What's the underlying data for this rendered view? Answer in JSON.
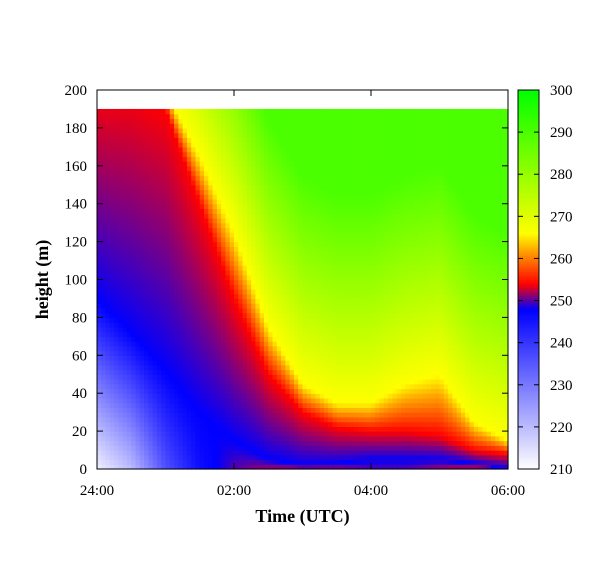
{
  "chart_data": {
    "type": "heatmap",
    "title": "",
    "xlabel": "Time (UTC)",
    "ylabel": "height (m)",
    "x_ticks": [
      "24:00",
      "02:00",
      "04:00",
      "06:00"
    ],
    "x_range_hours": [
      0,
      6
    ],
    "y_ticks": [
      "0",
      "20",
      "40",
      "60",
      "80",
      "100",
      "120",
      "140",
      "160",
      "180",
      "200"
    ],
    "ylim": [
      0,
      200
    ],
    "data_top_height": 190,
    "grid": false,
    "colorbar": {
      "placement": "right",
      "range": [
        210,
        300
      ],
      "ticks": [
        "210",
        "220",
        "230",
        "240",
        "250",
        "260",
        "270",
        "280",
        "290",
        "300"
      ],
      "stops": [
        {
          "value": 210,
          "color": "#ffffff"
        },
        {
          "value": 248,
          "color": "#0000ff"
        },
        {
          "value": 254,
          "color": "#ff0000"
        },
        {
          "value": 262,
          "color": "#ffa500"
        },
        {
          "value": 266,
          "color": "#ffff00"
        },
        {
          "value": 300,
          "color": "#00ff00"
        }
      ]
    },
    "transition_profile": {
      "time_hours": [
        0,
        0.5,
        1.0,
        1.5,
        2.0,
        2.5,
        3.0,
        3.5,
        4.0,
        4.5,
        5.0,
        5.5,
        6.0
      ],
      "blue_top_m": [
        90,
        72,
        52,
        30,
        15,
        5,
        2,
        3,
        5,
        5,
        5,
        3,
        0
      ],
      "red_top_m": [
        200,
        200,
        190,
        140,
        90,
        50,
        30,
        22,
        20,
        20,
        18,
        10,
        8
      ],
      "yellow_top_m": [
        200,
        200,
        200,
        165,
        125,
        75,
        45,
        35,
        35,
        45,
        50,
        25,
        15
      ],
      "surface_temp_K": [
        212,
        220,
        236,
        246,
        250,
        252,
        253,
        252,
        250,
        250,
        252,
        254,
        256
      ]
    }
  }
}
